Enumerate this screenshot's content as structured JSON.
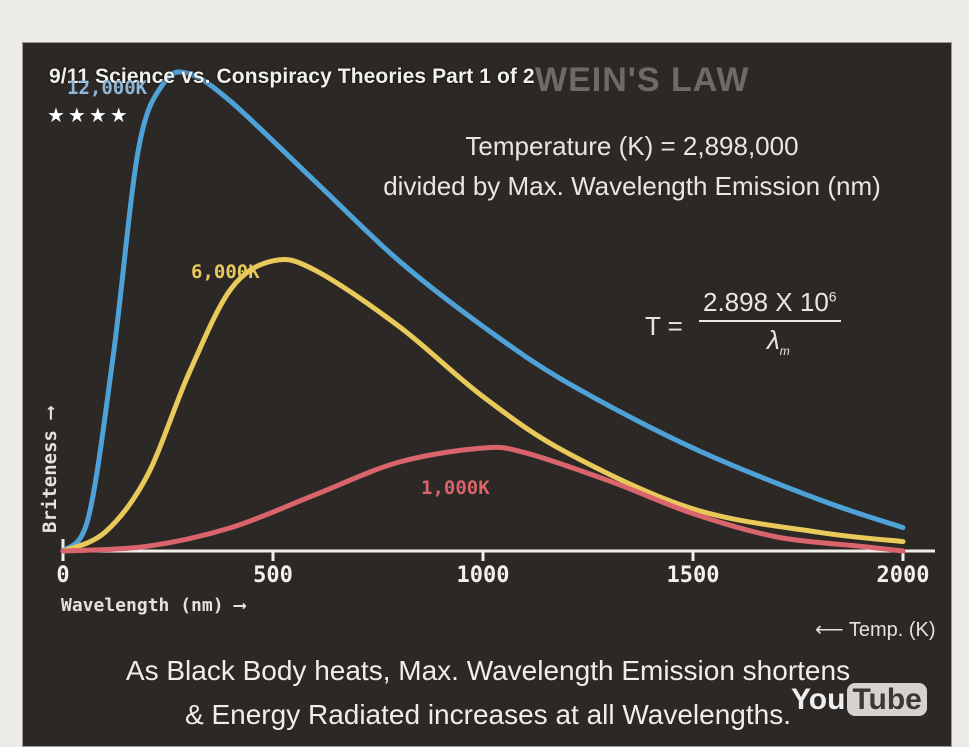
{
  "video": {
    "title": "9/11 Science vs. Conspiracy Theories Part 1 of 2",
    "rating": "★★★★",
    "watermark": {
      "you": "You",
      "tube": "Tube"
    }
  },
  "slide": {
    "ghost_title": "WEIN'S LAW",
    "formula_line1": "Temperature (K) = 2,898,000",
    "formula_line2": "divided by Max. Wavelength Emission (nm)",
    "equation": {
      "lhs": "T =",
      "numerator": "2.898 X 10",
      "exponent": "6",
      "denominator": "λ",
      "denominator_sub": "m"
    },
    "y_axis_label": "Briteness",
    "x_axis_label": "Wavelength (nm)",
    "temp_label": "Temp. (K)",
    "caption_line1": "As Black Body heats, Max. Wavelength Emission shortens",
    "caption_line2": "& Energy Radiated increases at all Wavelengths."
  },
  "colors": {
    "hot": "#4fa2d8",
    "mid": "#e8c95a",
    "cool": "#d9646c",
    "axis": "#f0eee9"
  },
  "chart_data": {
    "type": "line",
    "title": "WEIN'S LAW",
    "xlabel": "Wavelength (nm)",
    "ylabel": "Briteness",
    "xlim": [
      0,
      2000
    ],
    "ylim": [
      0,
      1
    ],
    "x_ticks": [
      0,
      500,
      1000,
      1500,
      2000
    ],
    "series": [
      {
        "name": "12,000K",
        "label": "12,000K",
        "color": "#4fa2d8",
        "x": [
          0,
          60,
          120,
          180,
          240,
          300,
          400,
          600,
          800,
          1000,
          1200,
          1500,
          1800,
          2000
        ],
        "y": [
          0.0,
          0.07,
          0.42,
          0.86,
          1.0,
          1.02,
          0.96,
          0.79,
          0.62,
          0.48,
          0.36,
          0.22,
          0.11,
          0.05
        ]
      },
      {
        "name": "6,000K",
        "label": "6,000K",
        "color": "#e8c95a",
        "x": [
          0,
          100,
          200,
          300,
          400,
          500,
          600,
          800,
          1000,
          1200,
          1500,
          1800,
          2000
        ],
        "y": [
          0.0,
          0.04,
          0.16,
          0.38,
          0.56,
          0.62,
          0.6,
          0.48,
          0.33,
          0.21,
          0.09,
          0.04,
          0.02
        ]
      },
      {
        "name": "1,000K",
        "label": "1,000K",
        "color": "#d9646c",
        "x": [
          0,
          200,
          400,
          600,
          800,
          1000,
          1100,
          1300,
          1500,
          1700,
          1900,
          2000
        ],
        "y": [
          0.0,
          0.01,
          0.05,
          0.12,
          0.19,
          0.22,
          0.21,
          0.15,
          0.08,
          0.03,
          0.01,
          0.0
        ]
      }
    ]
  }
}
